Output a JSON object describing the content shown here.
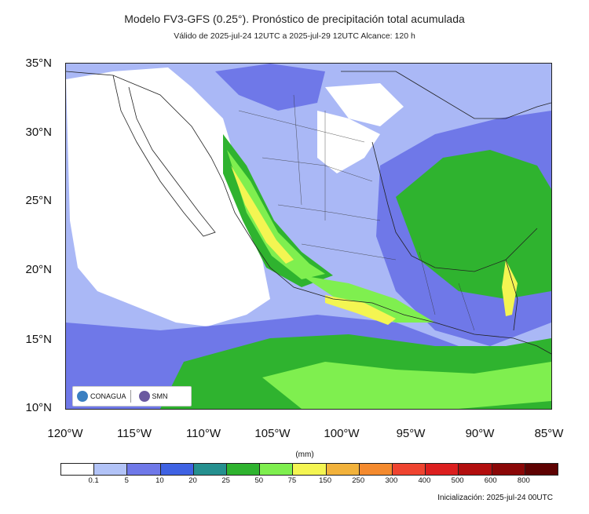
{
  "header": {
    "title": "Modelo FV3-GFS (0.25°). Pronóstico de precipitación total acumulada",
    "subtitle": "Válido de 2025-jul-24 12UTC a 2025-jul-29 12UTC    Alcance: 120 h"
  },
  "map": {
    "region": "Mexico",
    "lat_labels": [
      "35°N",
      "30°N",
      "25°N",
      "20°N",
      "15°N",
      "10°N"
    ],
    "lon_labels": [
      "120°W",
      "115°W",
      "110°W",
      "105°W",
      "100°W",
      "95°W",
      "90°W",
      "85°W"
    ],
    "logos": {
      "left": "CONAGUA",
      "right": "SMN"
    }
  },
  "legend": {
    "unit": "(mm)",
    "colors": [
      "#ffffff",
      "#b2c3f7",
      "#6f78e8",
      "#3f62e3",
      "#25908f",
      "#2fb32f",
      "#7fef4f",
      "#f4f552",
      "#f2b23b",
      "#f48a2e",
      "#ef4430",
      "#dc1f1f",
      "#b20e0e",
      "#8a0707",
      "#5e0202"
    ],
    "ticks": [
      "0.1",
      "5",
      "10",
      "20",
      "25",
      "50",
      "75",
      "150",
      "250",
      "300",
      "400",
      "500",
      "600",
      "800"
    ]
  },
  "footer": {
    "init": "Inicialización: 2025-jul-24 00UTC"
  }
}
